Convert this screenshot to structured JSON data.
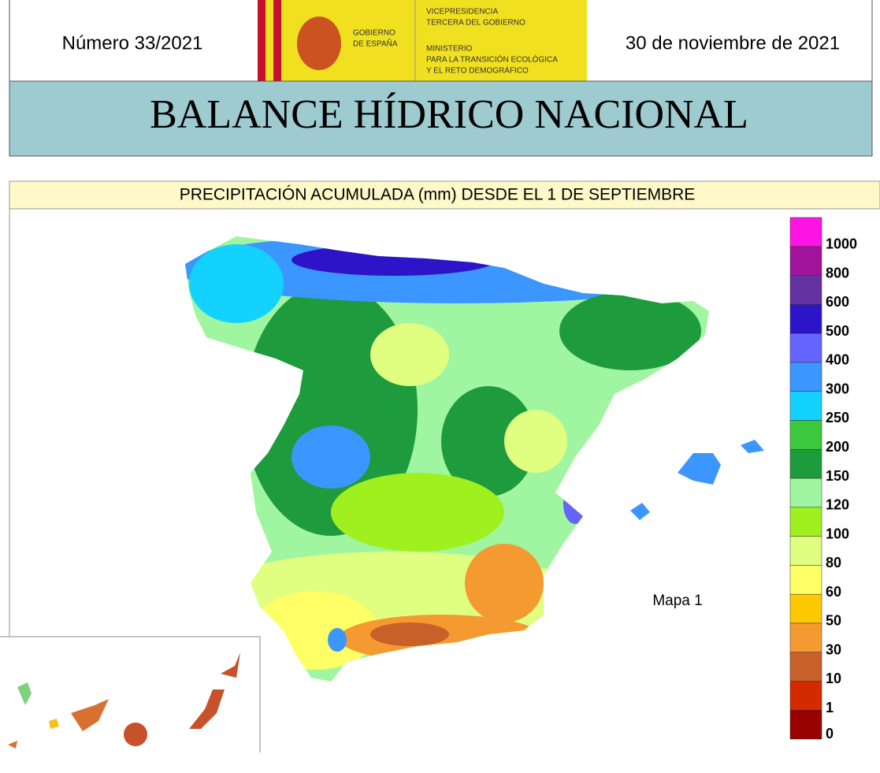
{
  "header": {
    "number": "Número 33/2021",
    "date": "30 de noviembre de 2021",
    "logo": {
      "gov": [
        "GOBIERNO",
        "DE ESPAÑA"
      ],
      "vice": [
        "VICEPRESIDENCIA",
        "TERCERA DEL GOBIERNO"
      ],
      "ministry": [
        "MINISTERIO",
        "PARA LA TRANSICIÓN ECOLÓGICA",
        "Y EL RETO DEMOGRÁFICO"
      ]
    }
  },
  "title": "BALANCE HÍDRICO NACIONAL",
  "subtitle": "PRECIPITACIÓN ACUMULADA (mm) DESDE EL 1 DE SEPTIEMBRE",
  "map": {
    "label": "Mapa 1",
    "legend": {
      "ticks": [
        0,
        1,
        10,
        30,
        50,
        60,
        80,
        100,
        120,
        150,
        200,
        250,
        300,
        400,
        500,
        600,
        800,
        1000
      ],
      "colors": [
        "#990000",
        "#d42a00",
        "#c8602a",
        "#f59a30",
        "#ffc800",
        "#ffff66",
        "#e0ff80",
        "#a0f020",
        "#a0f5a0",
        "#1e9b3c",
        "#3cc83c",
        "#14d2ff",
        "#3c96ff",
        "#6464ff",
        "#2e14c8",
        "#6432a0",
        "#a0149b",
        "#ff14e6"
      ]
    }
  }
}
